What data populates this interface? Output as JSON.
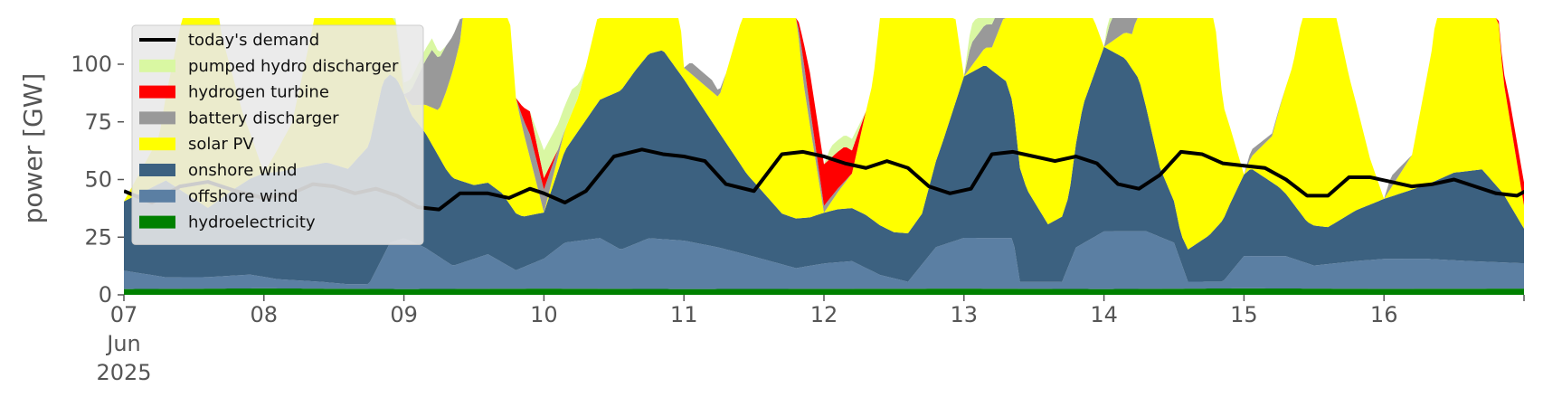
{
  "chart_data": {
    "type": "area",
    "ylabel": "power [GW]",
    "ylim": [
      0,
      120
    ],
    "xlim": [
      0,
      10
    ],
    "y_ticks": [
      0,
      25,
      50,
      75,
      100
    ],
    "x_ticks": [
      {
        "x": 0,
        "lines": [
          "07",
          "Jun",
          "2025"
        ]
      },
      {
        "x": 1,
        "lines": [
          "08"
        ]
      },
      {
        "x": 2,
        "lines": [
          "09"
        ]
      },
      {
        "x": 3,
        "lines": [
          "10"
        ]
      },
      {
        "x": 4,
        "lines": [
          "11"
        ]
      },
      {
        "x": 5,
        "lines": [
          "12"
        ]
      },
      {
        "x": 6,
        "lines": [
          "13"
        ]
      },
      {
        "x": 7,
        "lines": [
          "14"
        ]
      },
      {
        "x": 8,
        "lines": [
          "15"
        ]
      },
      {
        "x": 9,
        "lines": [
          "16"
        ]
      }
    ],
    "grid": false,
    "legend_position": "top-left",
    "x_unit": "days since 07 Jun 2025",
    "stacked_series": [
      {
        "name": "hydroelectricity",
        "color": "#008000",
        "points": [
          [
            0,
            2.5
          ],
          [
            1,
            2.8
          ],
          [
            2,
            2.5
          ],
          [
            3,
            2.7
          ],
          [
            4,
            2.5
          ],
          [
            5,
            2.6
          ],
          [
            6,
            2.7
          ],
          [
            7,
            2.5
          ],
          [
            8,
            2.8
          ],
          [
            9,
            2.6
          ],
          [
            10,
            2.7
          ]
        ]
      },
      {
        "name": "offshore wind",
        "color": "#5b7fa3",
        "points": [
          [
            0,
            8
          ],
          [
            0.3,
            5
          ],
          [
            0.6,
            5
          ],
          [
            0.9,
            6
          ],
          [
            1.1,
            4
          ],
          [
            1.4,
            3
          ],
          [
            1.6,
            2
          ],
          [
            1.75,
            2
          ],
          [
            1.9,
            20
          ],
          [
            2.0,
            22
          ],
          [
            2.15,
            18
          ],
          [
            2.35,
            10
          ],
          [
            2.6,
            15
          ],
          [
            2.8,
            8
          ],
          [
            3.0,
            13
          ],
          [
            3.15,
            20
          ],
          [
            3.4,
            22
          ],
          [
            3.55,
            17
          ],
          [
            3.75,
            22
          ],
          [
            4.0,
            21
          ],
          [
            4.25,
            18
          ],
          [
            4.5,
            14
          ],
          [
            4.8,
            9
          ],
          [
            5.0,
            11
          ],
          [
            5.2,
            12
          ],
          [
            5.4,
            6
          ],
          [
            5.6,
            3
          ],
          [
            5.8,
            18
          ],
          [
            6.0,
            22
          ],
          [
            6.35,
            22
          ],
          [
            6.4,
            3
          ],
          [
            6.7,
            3
          ],
          [
            6.8,
            18
          ],
          [
            7.0,
            25
          ],
          [
            7.3,
            25
          ],
          [
            7.5,
            20
          ],
          [
            7.6,
            3
          ],
          [
            7.85,
            3
          ],
          [
            8.0,
            14
          ],
          [
            8.3,
            14
          ],
          [
            8.5,
            10
          ],
          [
            8.8,
            12
          ],
          [
            9.0,
            13
          ],
          [
            9.3,
            13
          ],
          [
            9.6,
            12
          ],
          [
            10.0,
            11
          ]
        ]
      },
      {
        "name": "onshore wind",
        "color": "#3c6180",
        "points": [
          [
            0,
            30
          ],
          [
            0.3,
            42
          ],
          [
            0.6,
            30
          ],
          [
            0.8,
            38
          ],
          [
            1.0,
            45
          ],
          [
            1.2,
            48
          ],
          [
            1.45,
            52
          ],
          [
            1.6,
            50
          ],
          [
            1.75,
            60
          ],
          [
            1.85,
            76
          ],
          [
            1.95,
            70
          ],
          [
            2.05,
            55
          ],
          [
            2.15,
            50
          ],
          [
            2.3,
            40
          ],
          [
            2.5,
            32
          ],
          [
            2.7,
            30
          ],
          [
            2.85,
            22
          ],
          [
            3.0,
            20
          ],
          [
            3.15,
            40
          ],
          [
            3.4,
            60
          ],
          [
            3.65,
            75
          ],
          [
            3.75,
            80
          ],
          [
            3.85,
            82
          ],
          [
            4.0,
            70
          ],
          [
            4.25,
            50
          ],
          [
            4.45,
            35
          ],
          [
            4.7,
            22
          ],
          [
            4.9,
            21
          ],
          [
            5.1,
            23
          ],
          [
            5.3,
            23
          ],
          [
            5.5,
            20
          ],
          [
            5.7,
            22
          ],
          [
            5.85,
            45
          ],
          [
            6.0,
            70
          ],
          [
            6.15,
            75
          ],
          [
            6.3,
            68
          ],
          [
            6.45,
            40
          ],
          [
            6.6,
            25
          ],
          [
            6.75,
            30
          ],
          [
            6.85,
            60
          ],
          [
            7.0,
            80
          ],
          [
            7.15,
            75
          ],
          [
            7.25,
            66
          ],
          [
            7.4,
            30
          ],
          [
            7.55,
            12
          ],
          [
            7.75,
            20
          ],
          [
            7.9,
            30
          ],
          [
            8.05,
            38
          ],
          [
            8.25,
            30
          ],
          [
            8.45,
            18
          ],
          [
            8.6,
            16
          ],
          [
            8.8,
            22
          ],
          [
            8.95,
            25
          ],
          [
            9.1,
            28
          ],
          [
            9.3,
            32
          ],
          [
            9.5,
            38
          ],
          [
            9.7,
            40
          ],
          [
            9.85,
            30
          ],
          [
            10.0,
            15
          ]
        ]
      },
      {
        "name": "solar PV",
        "color": "#ffff00",
        "points": [
          [
            0,
            0
          ],
          [
            0.25,
            20
          ],
          [
            0.4,
            70
          ],
          [
            0.5,
            120
          ],
          [
            0.6,
            120
          ],
          [
            0.7,
            70
          ],
          [
            0.85,
            30
          ],
          [
            1.0,
            0
          ],
          [
            1.2,
            20
          ],
          [
            1.35,
            60
          ],
          [
            1.45,
            120
          ],
          [
            1.75,
            120
          ],
          [
            1.85,
            60
          ],
          [
            2.0,
            0
          ],
          [
            2.25,
            20
          ],
          [
            2.4,
            60
          ],
          [
            2.5,
            120
          ],
          [
            2.7,
            120
          ],
          [
            2.8,
            50
          ],
          [
            3.0,
            0
          ],
          [
            3.25,
            15
          ],
          [
            3.4,
            40
          ],
          [
            3.55,
            120
          ],
          [
            3.85,
            120
          ],
          [
            3.95,
            40
          ],
          [
            4.0,
            5
          ],
          [
            4.25,
            15
          ],
          [
            4.4,
            60
          ],
          [
            4.5,
            120
          ],
          [
            4.75,
            120
          ],
          [
            4.85,
            60
          ],
          [
            5.0,
            0
          ],
          [
            5.2,
            15
          ],
          [
            5.35,
            60
          ],
          [
            5.45,
            120
          ],
          [
            5.75,
            120
          ],
          [
            5.9,
            60
          ],
          [
            6.0,
            0
          ],
          [
            6.2,
            10
          ],
          [
            6.35,
            40
          ],
          [
            6.45,
            120
          ],
          [
            6.75,
            120
          ],
          [
            6.85,
            50
          ],
          [
            7.0,
            0
          ],
          [
            7.2,
            15
          ],
          [
            7.35,
            60
          ],
          [
            7.45,
            120
          ],
          [
            7.75,
            120
          ],
          [
            7.85,
            50
          ],
          [
            8.0,
            0
          ],
          [
            8.2,
            20
          ],
          [
            8.35,
            60
          ],
          [
            8.45,
            100
          ],
          [
            8.5,
            112
          ],
          [
            8.6,
            108
          ],
          [
            8.75,
            60
          ],
          [
            8.9,
            20
          ],
          [
            9.0,
            0
          ],
          [
            9.2,
            15
          ],
          [
            9.35,
            60
          ],
          [
            9.45,
            120
          ],
          [
            9.75,
            120
          ],
          [
            9.85,
            50
          ],
          [
            10.0,
            10
          ]
        ]
      },
      {
        "name": "battery discharger",
        "color": "#999999",
        "points": [
          [
            0,
            0
          ],
          [
            2.0,
            0
          ],
          [
            2.2,
            25
          ],
          [
            2.3,
            20
          ],
          [
            2.5,
            0
          ],
          [
            2.8,
            0
          ],
          [
            2.9,
            10
          ],
          [
            3.0,
            10
          ],
          [
            3.15,
            0
          ],
          [
            4.0,
            0
          ],
          [
            4.05,
            5
          ],
          [
            4.2,
            5
          ],
          [
            4.3,
            0
          ],
          [
            4.8,
            0
          ],
          [
            4.85,
            10
          ],
          [
            5.0,
            3
          ],
          [
            5.2,
            0
          ],
          [
            6.0,
            0
          ],
          [
            6.05,
            10
          ],
          [
            6.3,
            10
          ],
          [
            6.35,
            0
          ],
          [
            7.0,
            0
          ],
          [
            7.05,
            10
          ],
          [
            7.3,
            10
          ],
          [
            7.35,
            0
          ],
          [
            8.0,
            0
          ],
          [
            8.05,
            3
          ],
          [
            8.3,
            0
          ],
          [
            9.0,
            0
          ],
          [
            9.05,
            5
          ],
          [
            9.2,
            0
          ],
          [
            10.0,
            0
          ]
        ]
      },
      {
        "name": "hydrogen turbine",
        "color": "#ff0000",
        "points": [
          [
            0,
            0
          ],
          [
            2.8,
            0
          ],
          [
            2.9,
            10
          ],
          [
            3.0,
            5
          ],
          [
            3.1,
            0
          ],
          [
            4.8,
            0
          ],
          [
            4.9,
            15
          ],
          [
            5.0,
            18
          ],
          [
            5.15,
            15
          ],
          [
            5.3,
            0
          ],
          [
            9.8,
            0
          ],
          [
            9.9,
            8
          ],
          [
            10.0,
            10
          ]
        ]
      },
      {
        "name": "pumped hydro discharger",
        "color": "#d9f7a2",
        "points": [
          [
            0,
            0
          ],
          [
            1.9,
            0
          ],
          [
            2.0,
            5
          ],
          [
            2.2,
            5
          ],
          [
            2.3,
            0
          ],
          [
            2.9,
            0
          ],
          [
            3.0,
            12
          ],
          [
            3.2,
            10
          ],
          [
            3.3,
            0
          ],
          [
            5.0,
            0
          ],
          [
            5.05,
            5
          ],
          [
            5.2,
            5
          ],
          [
            5.3,
            0
          ],
          [
            6.0,
            0
          ],
          [
            6.05,
            8
          ],
          [
            6.3,
            8
          ],
          [
            6.35,
            0
          ],
          [
            7.0,
            0
          ],
          [
            7.05,
            8
          ],
          [
            7.25,
            8
          ],
          [
            7.3,
            0
          ],
          [
            10.0,
            0
          ]
        ]
      }
    ],
    "demand": {
      "name": "today's demand",
      "color": "#000000",
      "points": [
        [
          0,
          45
        ],
        [
          0.2,
          40
        ],
        [
          0.4,
          47
        ],
        [
          0.6,
          49
        ],
        [
          0.8,
          45
        ],
        [
          1.0,
          42
        ],
        [
          1.2,
          44
        ],
        [
          1.35,
          48
        ],
        [
          1.5,
          47
        ],
        [
          1.65,
          44
        ],
        [
          1.8,
          46
        ],
        [
          1.95,
          43
        ],
        [
          2.1,
          38
        ],
        [
          2.25,
          37
        ],
        [
          2.4,
          44
        ],
        [
          2.6,
          44
        ],
        [
          2.75,
          42
        ],
        [
          2.9,
          46
        ],
        [
          3.0,
          44
        ],
        [
          3.15,
          40
        ],
        [
          3.3,
          45
        ],
        [
          3.5,
          60
        ],
        [
          3.7,
          63
        ],
        [
          3.85,
          61
        ],
        [
          4.0,
          60
        ],
        [
          4.15,
          58
        ],
        [
          4.3,
          48
        ],
        [
          4.5,
          45
        ],
        [
          4.7,
          61
        ],
        [
          4.85,
          62
        ],
        [
          5.0,
          60
        ],
        [
          5.15,
          57
        ],
        [
          5.3,
          55
        ],
        [
          5.45,
          58
        ],
        [
          5.6,
          55
        ],
        [
          5.75,
          47
        ],
        [
          5.9,
          44
        ],
        [
          6.05,
          46
        ],
        [
          6.2,
          61
        ],
        [
          6.35,
          62
        ],
        [
          6.5,
          60
        ],
        [
          6.65,
          58
        ],
        [
          6.8,
          60
        ],
        [
          6.95,
          57
        ],
        [
          7.1,
          48
        ],
        [
          7.25,
          46
        ],
        [
          7.4,
          52
        ],
        [
          7.55,
          62
        ],
        [
          7.7,
          61
        ],
        [
          7.85,
          57
        ],
        [
          8.0,
          56
        ],
        [
          8.15,
          55
        ],
        [
          8.3,
          50
        ],
        [
          8.45,
          43
        ],
        [
          8.6,
          43
        ],
        [
          8.75,
          51
        ],
        [
          8.9,
          51
        ],
        [
          9.05,
          49
        ],
        [
          9.2,
          47
        ],
        [
          9.35,
          48
        ],
        [
          9.5,
          50
        ],
        [
          9.65,
          47
        ],
        [
          9.8,
          44
        ],
        [
          9.95,
          43
        ],
        [
          10.1,
          48
        ],
        [
          10.3,
          62
        ],
        [
          10.5,
          63
        ],
        [
          10.7,
          59
        ],
        [
          10.9,
          59
        ],
        [
          11.0,
          55
        ]
      ]
    }
  }
}
